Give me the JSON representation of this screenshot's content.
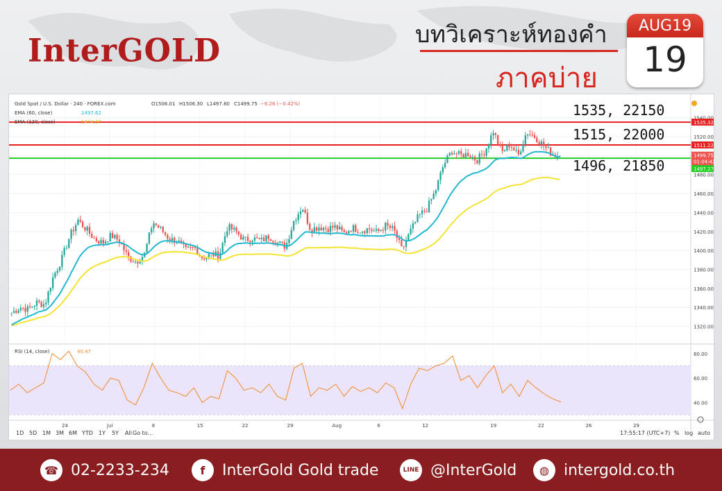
{
  "brand": {
    "logo_text": "InterGOLD"
  },
  "header": {
    "title": "บทวิเคราะห์ทองคำ",
    "subtitle": "ภาคบ่าย"
  },
  "calendar": {
    "month": "AUG19",
    "day": "19"
  },
  "chart_legend": {
    "symbol_line": "Gold Spot / U.S. Dollar · 240 · FOREX.com",
    "ohlc": {
      "o": "O1506.01",
      "h": "H1506.30",
      "l": "L1497.80",
      "c": "C1499.75",
      "chg": "−6.26 (−0.42%)"
    },
    "ema60_label": "EMA (60, close)",
    "ema60_value": "1497.62",
    "ema120_label": "EMA (120, close)",
    "ema120_value": "1474.67",
    "rsi_label": "RSI (14, close)",
    "rsi_value": "40.47"
  },
  "annotations": {
    "r1": "1535, 22150",
    "r2": "1515, 22000",
    "s1": "1496, 21850"
  },
  "price_tags": {
    "t1535": "1535.32",
    "t1511": "1511.22",
    "t1499": "1499.75",
    "tclock": "01:04:42",
    "t1497": "1497.27"
  },
  "timeframes": [
    "1D",
    "5D",
    "1M",
    "3M",
    "6M",
    "YTD",
    "1Y",
    "5Y",
    "All"
  ],
  "goto_label": "Go to...",
  "status": {
    "clock": "17:55:17 (UTC+7)",
    "pct": "%",
    "log": "log",
    "auto": "auto"
  },
  "footer": {
    "phone": "02-2233-234",
    "facebook": "InterGold Gold trade",
    "line": "@InterGold",
    "website": "intergold.co.th"
  },
  "colors": {
    "brand_red": "#b01b1b",
    "footer_bg": "#8a1d20",
    "ema60": "#21b8d0",
    "ema120": "#f4e331",
    "up": "#26a69a",
    "down": "#ef5350",
    "resistance": "#e62020",
    "support": "#22cc22",
    "rsi": "#f08a2c"
  },
  "chart_data": [
    {
      "type": "candlestick",
      "title": "Gold Spot / U.S. Dollar · 240 · FOREX.com",
      "x_ticks": [
        "24",
        "Jul",
        "8",
        "15",
        "22",
        "29",
        "Aug",
        "6",
        "12",
        "19",
        "22",
        "26",
        "29"
      ],
      "y_ticks": [
        1320,
        1340,
        1360,
        1380,
        1400,
        1420,
        1440,
        1460,
        1480,
        1500,
        1520,
        1540
      ],
      "ylim": [
        1305,
        1550
      ],
      "close_path": [
        1334,
        1340,
        1338,
        1345,
        1343,
        1372,
        1390,
        1415,
        1432,
        1422,
        1412,
        1408,
        1416,
        1410,
        1393,
        1388,
        1396,
        1430,
        1422,
        1412,
        1410,
        1400,
        1403,
        1392,
        1396,
        1395,
        1425,
        1420,
        1411,
        1413,
        1410,
        1415,
        1408,
        1404,
        1432,
        1446,
        1422,
        1425,
        1423,
        1425,
        1418,
        1424,
        1421,
        1423,
        1419,
        1426,
        1422,
        1400,
        1420,
        1436,
        1444,
        1462,
        1490,
        1505,
        1500,
        1502,
        1495,
        1505,
        1526,
        1503,
        1512,
        1500,
        1525,
        1520,
        1511,
        1502,
        1499.75
      ],
      "series": [
        {
          "name": "EMA (60, close)",
          "last": 1497.62
        },
        {
          "name": "EMA (120, close)",
          "last": 1474.67
        }
      ],
      "horizontal_lines": [
        {
          "label": "1535, 22150",
          "value": 1535.32,
          "color": "red"
        },
        {
          "label": "1515, 22000",
          "value": 1511.22,
          "color": "red"
        },
        {
          "label": "1496, 21850",
          "value": 1497.27,
          "color": "green"
        }
      ],
      "last_price": 1499.75
    },
    {
      "type": "line",
      "title": "RSI (14, close)",
      "y_ticks": [
        40,
        60,
        80
      ],
      "ylim": [
        30,
        85
      ],
      "band": [
        30,
        70
      ],
      "last": 40.47,
      "values": [
        50,
        55,
        48,
        52,
        56,
        80,
        75,
        82,
        70,
        65,
        55,
        50,
        60,
        58,
        42,
        38,
        52,
        72,
        60,
        50,
        48,
        45,
        52,
        40,
        45,
        43,
        66,
        60,
        50,
        52,
        48,
        55,
        45,
        42,
        68,
        72,
        45,
        52,
        50,
        55,
        45,
        53,
        49,
        52,
        48,
        56,
        52,
        35,
        55,
        68,
        66,
        70,
        72,
        78,
        58,
        62,
        52,
        62,
        70,
        48,
        55,
        45,
        58,
        52,
        47,
        43,
        40.47
      ]
    }
  ]
}
